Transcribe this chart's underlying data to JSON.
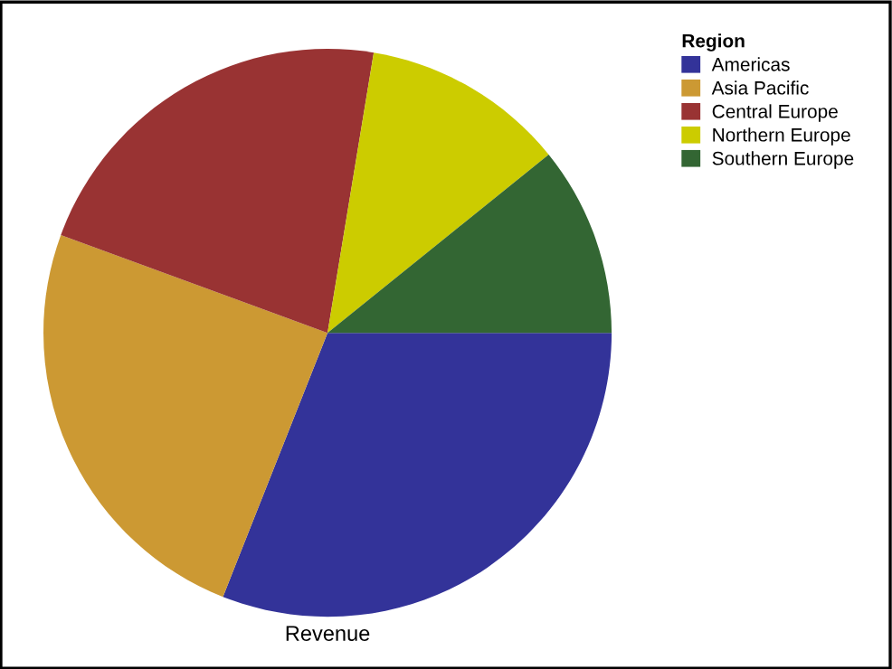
{
  "chart_data": {
    "type": "pie",
    "xlabel": "Revenue",
    "legend_title": "Region",
    "legend": "top right",
    "categories": [
      "Americas",
      "Asia Pacific",
      "Central Europe",
      "Northern Europe",
      "Southern Europe"
    ],
    "values": [
      31.0,
      24.6,
      22.0,
      11.6,
      10.8
    ],
    "colors": [
      "#333399",
      "#cc9933",
      "#993333",
      "#cccc00",
      "#336633"
    ]
  }
}
